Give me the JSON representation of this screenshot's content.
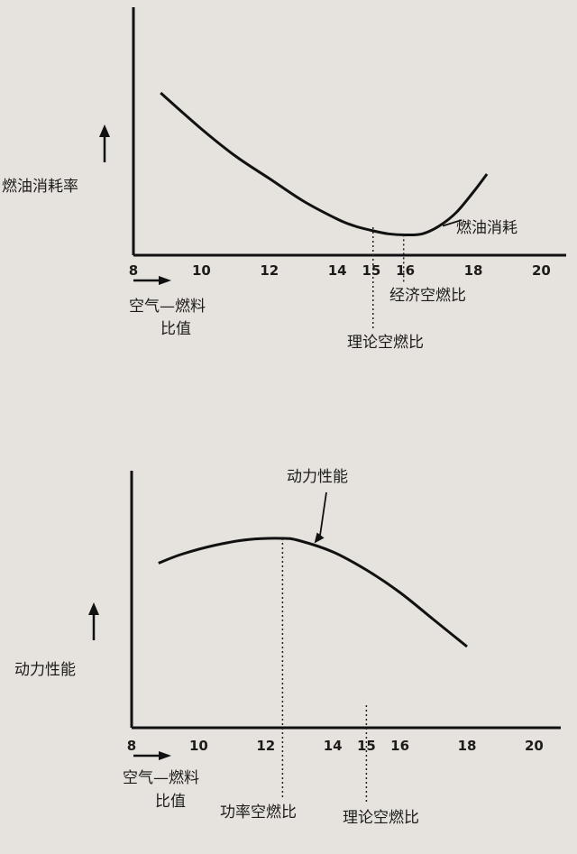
{
  "chart_data": [
    {
      "type": "line",
      "ylabel": "燃油消耗率",
      "xlabel_line1": "空气—燃料",
      "xlabel_line2": "比值",
      "xlim": [
        8,
        20.6
      ],
      "ylim": [
        0,
        1
      ],
      "x_ticks": [
        "8",
        "10",
        "12",
        "14",
        "15",
        "16",
        "18",
        "20"
      ],
      "x_tick_values": [
        8,
        10,
        12,
        14,
        15,
        16,
        18,
        20
      ],
      "series": [
        {
          "name": "燃油消耗",
          "x": [
            8.8,
            10,
            11,
            12,
            13,
            14,
            14.5,
            15,
            15.5,
            16,
            16.5,
            17,
            17.5,
            18,
            18.4
          ],
          "values": [
            0.72,
            0.56,
            0.44,
            0.34,
            0.24,
            0.16,
            0.13,
            0.11,
            0.095,
            0.09,
            0.095,
            0.13,
            0.19,
            0.28,
            0.36
          ]
        }
      ],
      "annotations": [
        {
          "text": "燃油消耗",
          "x": 17.1,
          "y": 0.13
        },
        {
          "text": "经济空燃比",
          "x": 15.95
        },
        {
          "text": "理论空燃比",
          "x": 15.05
        }
      ]
    },
    {
      "type": "line",
      "ylabel": "动力性能",
      "xlabel_line1": "空气—燃料",
      "xlabel_line2": "比值",
      "xlim": [
        8,
        20.6
      ],
      "ylim": [
        0,
        1
      ],
      "x_ticks": [
        "8",
        "10",
        "12",
        "14",
        "15",
        "16",
        "18",
        "20"
      ],
      "x_tick_values": [
        8,
        10,
        12,
        14,
        15,
        16,
        18,
        20
      ],
      "series": [
        {
          "name": "动力性能",
          "x": [
            8.8,
            9.5,
            10.5,
            11.5,
            12.5,
            13,
            14,
            15,
            16,
            17,
            18
          ],
          "values": [
            0.73,
            0.77,
            0.81,
            0.835,
            0.84,
            0.83,
            0.78,
            0.7,
            0.6,
            0.48,
            0.36
          ]
        }
      ],
      "annotations": [
        {
          "text": "动力性能",
          "x": 13.5,
          "y": 0.81
        },
        {
          "text": "功率空燃比",
          "x": 12.5
        },
        {
          "text": "理论空燃比",
          "x": 15
        }
      ]
    }
  ]
}
